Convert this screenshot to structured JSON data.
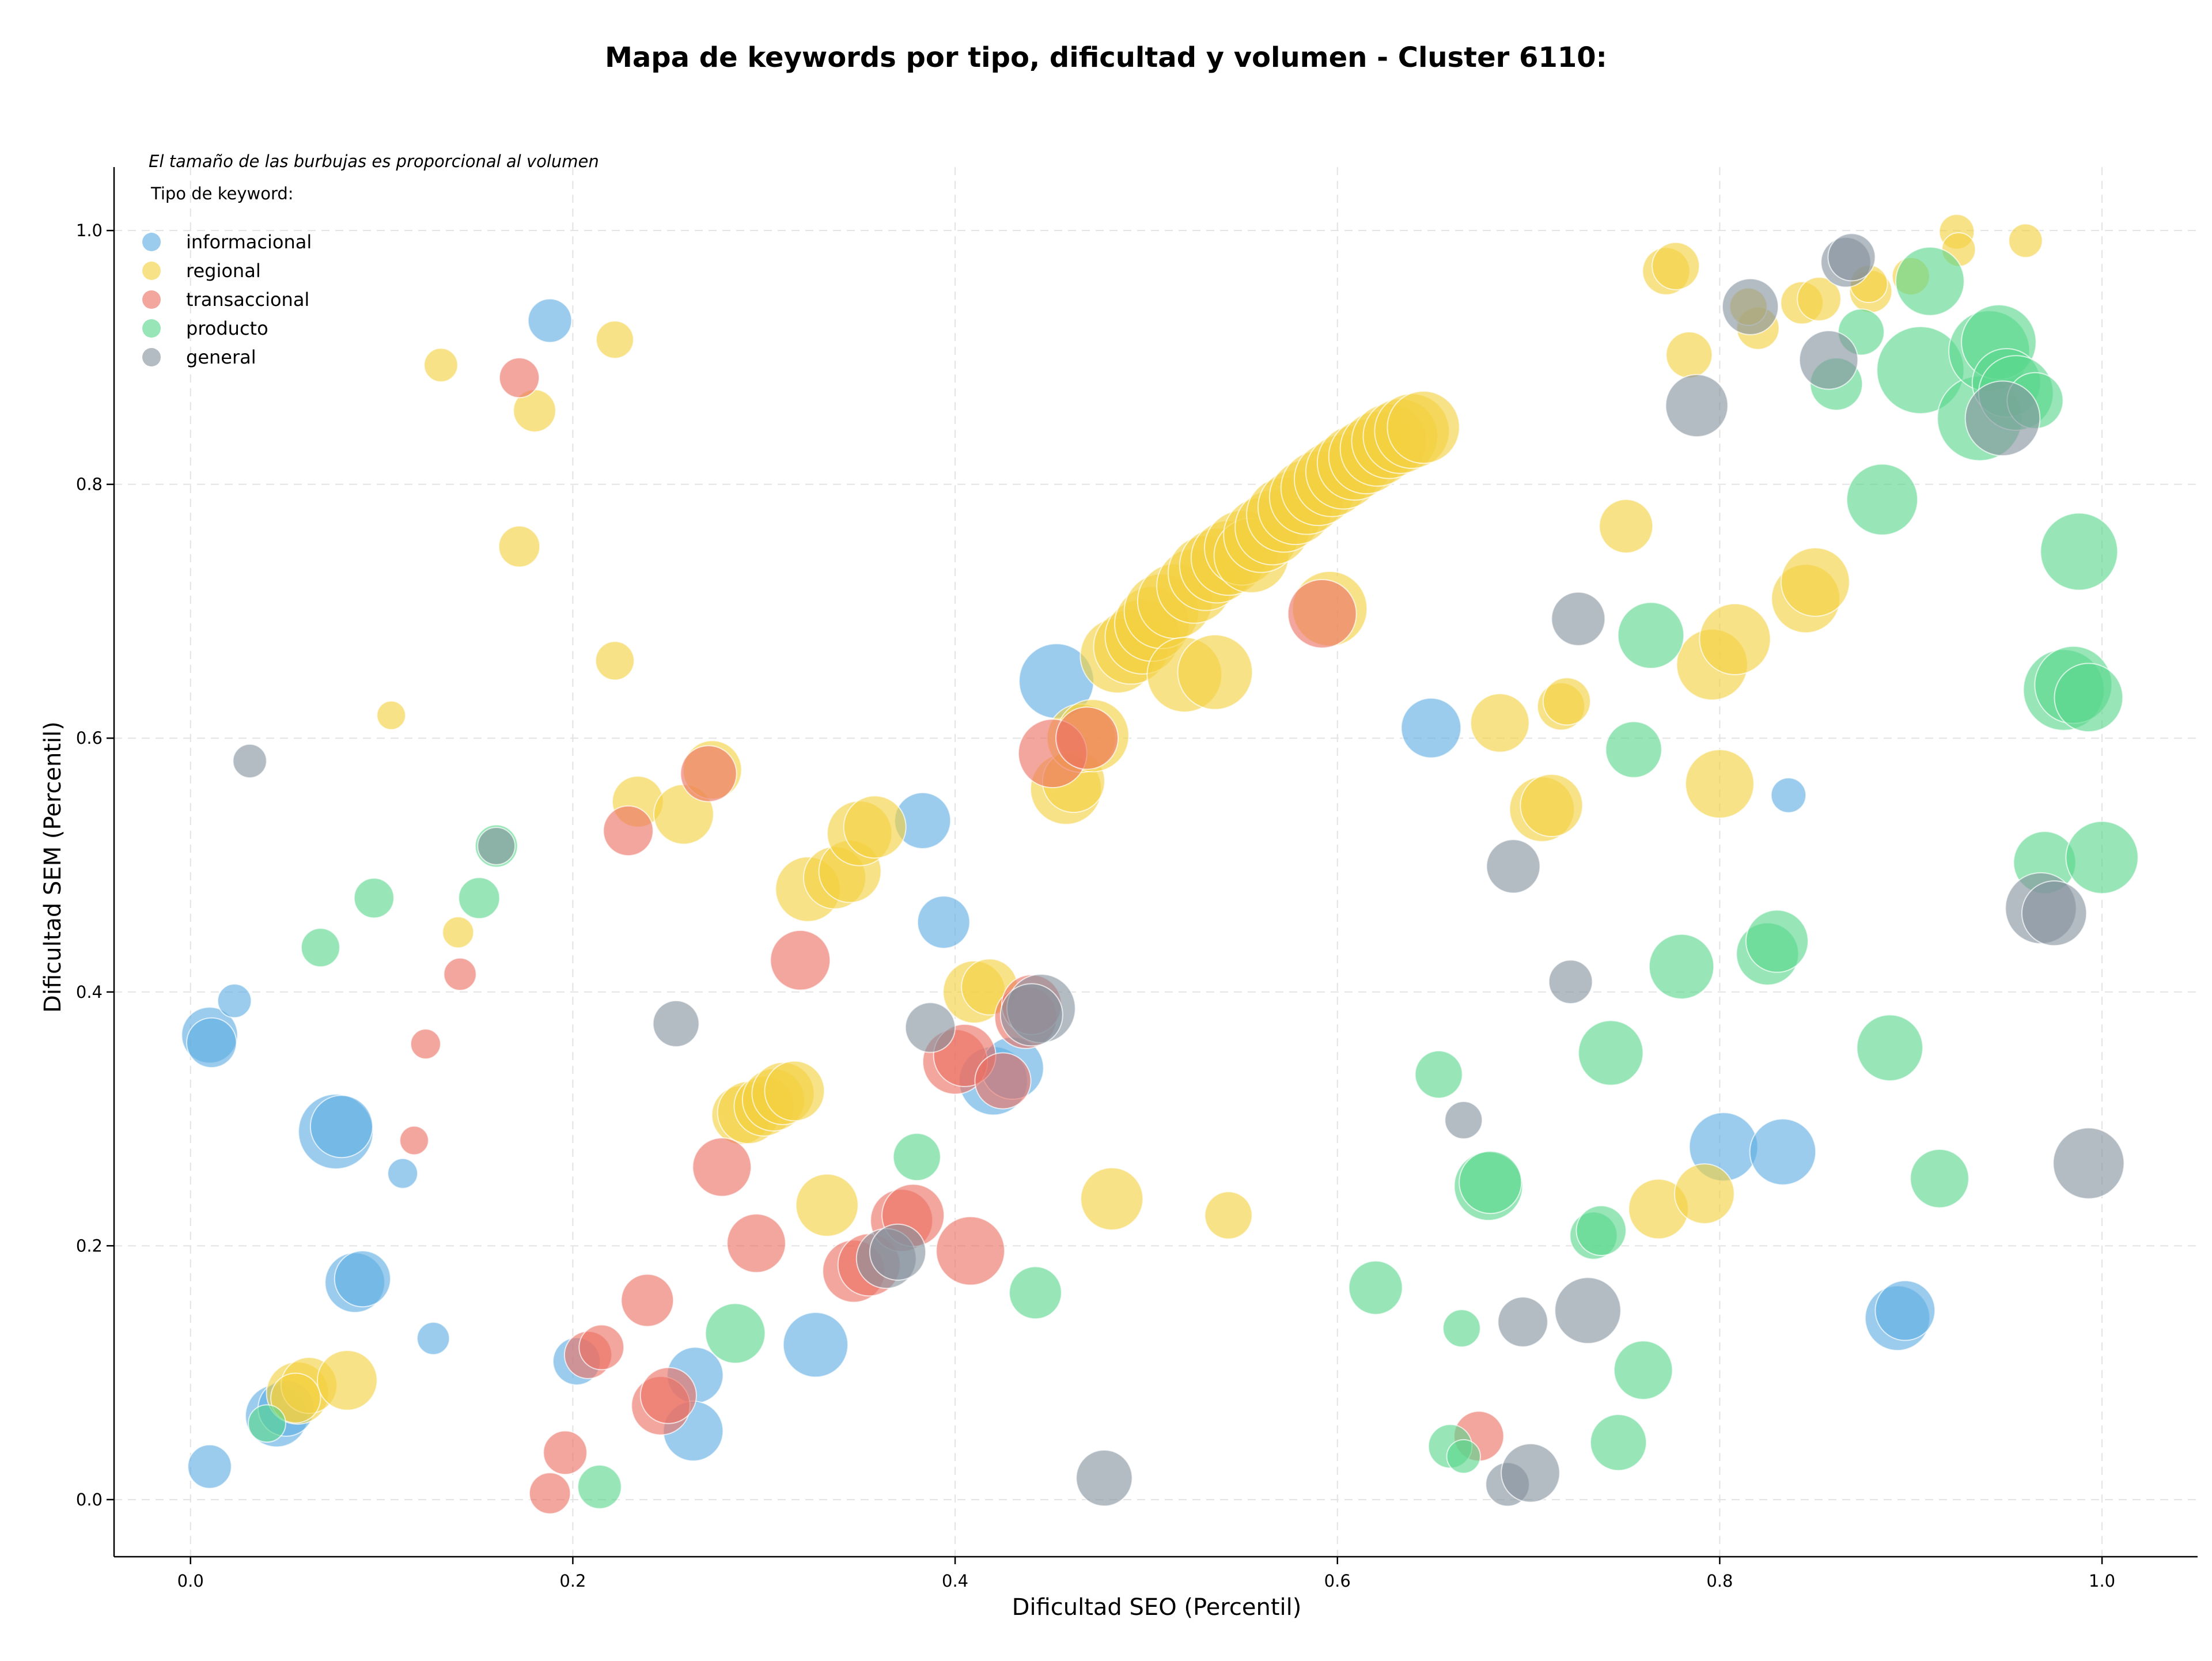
{
  "chart_data": {
    "type": "scatter",
    "title": "Mapa de keywords por tipo, dificultad y volumen - Cluster 6110:",
    "xlabel": "Dificultad SEO (Percentil)",
    "ylabel": "Dificultad SEM (Percentil)",
    "xlim": [
      -0.04,
      1.05
    ],
    "ylim": [
      -0.045,
      1.05
    ],
    "xticks": [
      "0.0",
      "0.2",
      "0.4",
      "0.6",
      "0.8",
      "1.0"
    ],
    "yticks": [
      "0.0",
      "0.2",
      "0.4",
      "0.6",
      "0.8",
      "1.0"
    ],
    "grid": true,
    "note": "El tamaño de las burbujas es proporcional al volumen",
    "legend": {
      "title": "Tipo de keyword:",
      "position": "top-left"
    },
    "series": [
      {
        "name": "informacional",
        "color": "#5DADE2",
        "points": [
          [
            0.188,
            0.929,
            0.35
          ],
          [
            0.01,
            0.366,
            0.45
          ],
          [
            0.011,
            0.36,
            0.4
          ],
          [
            0.023,
            0.393,
            0.27
          ],
          [
            0.076,
            0.29,
            0.6
          ],
          [
            0.079,
            0.294,
            0.5
          ],
          [
            0.111,
            0.257,
            0.24
          ],
          [
            0.086,
            0.171,
            0.48
          ],
          [
            0.09,
            0.174,
            0.45
          ],
          [
            0.127,
            0.127,
            0.26
          ],
          [
            0.01,
            0.026,
            0.35
          ],
          [
            0.045,
            0.066,
            0.5
          ],
          [
            0.05,
            0.072,
            0.45
          ],
          [
            0.202,
            0.109,
            0.38
          ],
          [
            0.264,
            0.098,
            0.45
          ],
          [
            0.263,
            0.054,
            0.48
          ],
          [
            0.327,
            0.122,
            0.52
          ],
          [
            0.383,
            0.535,
            0.45
          ],
          [
            0.394,
            0.455,
            0.42
          ],
          [
            0.453,
            0.645,
            0.6
          ],
          [
            0.42,
            0.33,
            0.55
          ],
          [
            0.43,
            0.34,
            0.5
          ],
          [
            0.649,
            0.608,
            0.48
          ],
          [
            0.836,
            0.555,
            0.28
          ],
          [
            0.802,
            0.278,
            0.55
          ],
          [
            0.833,
            0.274,
            0.53
          ],
          [
            0.893,
            0.143,
            0.52
          ],
          [
            0.897,
            0.149,
            0.48
          ]
        ]
      },
      {
        "name": "regional",
        "color": "#F4D03F",
        "points": [
          [
            0.131,
            0.894,
            0.27
          ],
          [
            0.222,
            0.914,
            0.3
          ],
          [
            0.18,
            0.858,
            0.34
          ],
          [
            0.172,
            0.751,
            0.33
          ],
          [
            0.222,
            0.661,
            0.31
          ],
          [
            0.105,
            0.618,
            0.23
          ],
          [
            0.14,
            0.447,
            0.25
          ],
          [
            0.234,
            0.55,
            0.41
          ],
          [
            0.258,
            0.54,
            0.48
          ],
          [
            0.273,
            0.575,
            0.47
          ],
          [
            0.323,
            0.481,
            0.52
          ],
          [
            0.337,
            0.49,
            0.5
          ],
          [
            0.345,
            0.495,
            0.5
          ],
          [
            0.35,
            0.525,
            0.52
          ],
          [
            0.358,
            0.53,
            0.5
          ],
          [
            0.288,
            0.303,
            0.47
          ],
          [
            0.292,
            0.305,
            0.5
          ],
          [
            0.3,
            0.31,
            0.48
          ],
          [
            0.305,
            0.315,
            0.5
          ],
          [
            0.31,
            0.32,
            0.5
          ],
          [
            0.316,
            0.322,
            0.48
          ],
          [
            0.333,
            0.232,
            0.5
          ],
          [
            0.41,
            0.4,
            0.5
          ],
          [
            0.418,
            0.404,
            0.45
          ],
          [
            0.056,
            0.084,
            0.5
          ],
          [
            0.062,
            0.09,
            0.45
          ],
          [
            0.082,
            0.094,
            0.48
          ],
          [
            0.055,
            0.08,
            0.4
          ],
          [
            0.458,
            0.56,
            0.57
          ],
          [
            0.462,
            0.566,
            0.5
          ],
          [
            0.466,
            0.6,
            0.55
          ],
          [
            0.472,
            0.602,
            0.58
          ],
          [
            0.485,
            0.665,
            0.6
          ],
          [
            0.492,
            0.672,
            0.6
          ],
          [
            0.498,
            0.68,
            0.6
          ],
          [
            0.503,
            0.69,
            0.6
          ],
          [
            0.508,
            0.7,
            0.6
          ],
          [
            0.515,
            0.708,
            0.6
          ],
          [
            0.52,
            0.65,
            0.6
          ],
          [
            0.536,
            0.652,
            0.6
          ],
          [
            0.525,
            0.72,
            0.6
          ],
          [
            0.531,
            0.73,
            0.6
          ],
          [
            0.537,
            0.736,
            0.6
          ],
          [
            0.543,
            0.742,
            0.6
          ],
          [
            0.55,
            0.75,
            0.6
          ],
          [
            0.555,
            0.744,
            0.6
          ],
          [
            0.56,
            0.76,
            0.6
          ],
          [
            0.566,
            0.766,
            0.6
          ],
          [
            0.572,
            0.776,
            0.6
          ],
          [
            0.578,
            0.782,
            0.6
          ],
          [
            0.584,
            0.79,
            0.6
          ],
          [
            0.59,
            0.797,
            0.6
          ],
          [
            0.597,
            0.804,
            0.6
          ],
          [
            0.603,
            0.81,
            0.6
          ],
          [
            0.609,
            0.817,
            0.6
          ],
          [
            0.615,
            0.822,
            0.6
          ],
          [
            0.621,
            0.828,
            0.6
          ],
          [
            0.627,
            0.834,
            0.6
          ],
          [
            0.633,
            0.838,
            0.6
          ],
          [
            0.639,
            0.842,
            0.6
          ],
          [
            0.645,
            0.845,
            0.58
          ],
          [
            0.596,
            0.702,
            0.6
          ],
          [
            0.482,
            0.237,
            0.5
          ],
          [
            0.543,
            0.224,
            0.38
          ],
          [
            0.685,
            0.612,
            0.47
          ],
          [
            0.717,
            0.625,
            0.38
          ],
          [
            0.72,
            0.629,
            0.38
          ],
          [
            0.707,
            0.544,
            0.52
          ],
          [
            0.712,
            0.547,
            0.5
          ],
          [
            0.751,
            0.767,
            0.43
          ],
          [
            0.772,
            0.968,
            0.38
          ],
          [
            0.777,
            0.972,
            0.38
          ],
          [
            0.784,
            0.902,
            0.37
          ],
          [
            0.796,
            0.658,
            0.57
          ],
          [
            0.808,
            0.678,
            0.57
          ],
          [
            0.8,
            0.564,
            0.55
          ],
          [
            0.768,
            0.229,
            0.48
          ],
          [
            0.792,
            0.241,
            0.48
          ],
          [
            0.82,
            0.923,
            0.34
          ],
          [
            0.815,
            0.94,
            0.3
          ],
          [
            0.843,
            0.943,
            0.34
          ],
          [
            0.852,
            0.946,
            0.35
          ],
          [
            0.879,
            0.952,
            0.34
          ],
          [
            0.878,
            0.958,
            0.3
          ],
          [
            0.845,
            0.71,
            0.55
          ],
          [
            0.85,
            0.723,
            0.55
          ],
          [
            0.924,
            0.999,
            0.28
          ],
          [
            0.925,
            0.985,
            0.27
          ],
          [
            0.9,
            0.964,
            0.3
          ],
          [
            0.96,
            0.992,
            0.27
          ]
        ]
      },
      {
        "name": "transaccional",
        "color": "#EC7063",
        "points": [
          [
            0.172,
            0.884,
            0.32
          ],
          [
            0.123,
            0.359,
            0.24
          ],
          [
            0.141,
            0.414,
            0.26
          ],
          [
            0.117,
            0.283,
            0.23
          ],
          [
            0.229,
            0.527,
            0.4
          ],
          [
            0.271,
            0.572,
            0.45
          ],
          [
            0.319,
            0.425,
            0.48
          ],
          [
            0.278,
            0.262,
            0.47
          ],
          [
            0.296,
            0.202,
            0.47
          ],
          [
            0.239,
            0.157,
            0.42
          ],
          [
            0.208,
            0.114,
            0.38
          ],
          [
            0.215,
            0.12,
            0.36
          ],
          [
            0.246,
            0.074,
            0.47
          ],
          [
            0.25,
            0.082,
            0.45
          ],
          [
            0.196,
            0.037,
            0.35
          ],
          [
            0.188,
            0.005,
            0.33
          ],
          [
            0.347,
            0.18,
            0.5
          ],
          [
            0.355,
            0.185,
            0.5
          ],
          [
            0.372,
            0.22,
            0.5
          ],
          [
            0.378,
            0.224,
            0.5
          ],
          [
            0.408,
            0.196,
            0.55
          ],
          [
            0.4,
            0.345,
            0.52
          ],
          [
            0.405,
            0.35,
            0.5
          ],
          [
            0.425,
            0.33,
            0.45
          ],
          [
            0.437,
            0.38,
            0.5
          ],
          [
            0.44,
            0.39,
            0.48
          ],
          [
            0.451,
            0.588,
            0.55
          ],
          [
            0.469,
            0.6,
            0.5
          ],
          [
            0.592,
            0.698,
            0.55
          ],
          [
            0.674,
            0.05,
            0.4
          ]
        ]
      },
      {
        "name": "producto",
        "color": "#58D68D",
        "points": [
          [
            0.068,
            0.435,
            0.31
          ],
          [
            0.096,
            0.474,
            0.32
          ],
          [
            0.151,
            0.474,
            0.33
          ],
          [
            0.16,
            0.515,
            0.34
          ],
          [
            0.04,
            0.06,
            0.3
          ],
          [
            0.214,
            0.01,
            0.35
          ],
          [
            0.285,
            0.131,
            0.48
          ],
          [
            0.38,
            0.27,
            0.38
          ],
          [
            0.442,
            0.163,
            0.42
          ],
          [
            0.62,
            0.167,
            0.43
          ],
          [
            0.653,
            0.335,
            0.38
          ],
          [
            0.665,
            0.135,
            0.3
          ],
          [
            0.659,
            0.042,
            0.35
          ],
          [
            0.666,
            0.034,
            0.27
          ],
          [
            0.679,
            0.247,
            0.55
          ],
          [
            0.68,
            0.25,
            0.5
          ],
          [
            0.734,
            0.208,
            0.38
          ],
          [
            0.738,
            0.212,
            0.4
          ],
          [
            0.743,
            0.352,
            0.52
          ],
          [
            0.747,
            0.045,
            0.45
          ],
          [
            0.76,
            0.102,
            0.47
          ],
          [
            0.755,
            0.591,
            0.45
          ],
          [
            0.764,
            0.681,
            0.53
          ],
          [
            0.78,
            0.42,
            0.52
          ],
          [
            0.825,
            0.43,
            0.5
          ],
          [
            0.83,
            0.44,
            0.5
          ],
          [
            0.861,
            0.879,
            0.42
          ],
          [
            0.874,
            0.92,
            0.37
          ],
          [
            0.885,
            0.788,
            0.57
          ],
          [
            0.889,
            0.356,
            0.53
          ],
          [
            0.905,
            0.89,
            0.7
          ],
          [
            0.91,
            0.96,
            0.55
          ],
          [
            0.915,
            0.253,
            0.47
          ],
          [
            0.936,
            0.852,
            0.68
          ],
          [
            0.941,
            0.905,
            0.65
          ],
          [
            0.946,
            0.912,
            0.6
          ],
          [
            0.95,
            0.88,
            0.55
          ],
          [
            0.955,
            0.872,
            0.6
          ],
          [
            0.965,
            0.866,
            0.45
          ],
          [
            0.97,
            0.502,
            0.5
          ],
          [
            0.98,
            0.638,
            0.65
          ],
          [
            0.985,
            0.642,
            0.62
          ],
          [
            0.993,
            0.632,
            0.55
          ],
          [
            1.0,
            0.506,
            0.58
          ],
          [
            0.988,
            0.747,
            0.62
          ]
        ]
      },
      {
        "name": "general",
        "color": "#85929E",
        "points": [
          [
            0.031,
            0.582,
            0.27
          ],
          [
            0.16,
            0.515,
            0.3
          ],
          [
            0.254,
            0.375,
            0.37
          ],
          [
            0.387,
            0.372,
            0.4
          ],
          [
            0.445,
            0.387,
            0.55
          ],
          [
            0.44,
            0.382,
            0.5
          ],
          [
            0.364,
            0.19,
            0.48
          ],
          [
            0.37,
            0.195,
            0.45
          ],
          [
            0.478,
            0.017,
            0.45
          ],
          [
            0.666,
            0.299,
            0.3
          ],
          [
            0.692,
            0.499,
            0.43
          ],
          [
            0.689,
            0.012,
            0.35
          ],
          [
            0.697,
            0.14,
            0.4
          ],
          [
            0.701,
            0.021,
            0.47
          ],
          [
            0.722,
            0.408,
            0.35
          ],
          [
            0.726,
            0.694,
            0.43
          ],
          [
            0.731,
            0.149,
            0.53
          ],
          [
            0.788,
            0.862,
            0.5
          ],
          [
            0.816,
            0.94,
            0.45
          ],
          [
            0.857,
            0.898,
            0.47
          ],
          [
            0.866,
            0.975,
            0.4
          ],
          [
            0.869,
            0.979,
            0.38
          ],
          [
            0.948,
            0.852,
            0.6
          ],
          [
            0.968,
            0.466,
            0.57
          ],
          [
            0.975,
            0.462,
            0.52
          ],
          [
            0.993,
            0.265,
            0.57
          ]
        ]
      }
    ]
  }
}
